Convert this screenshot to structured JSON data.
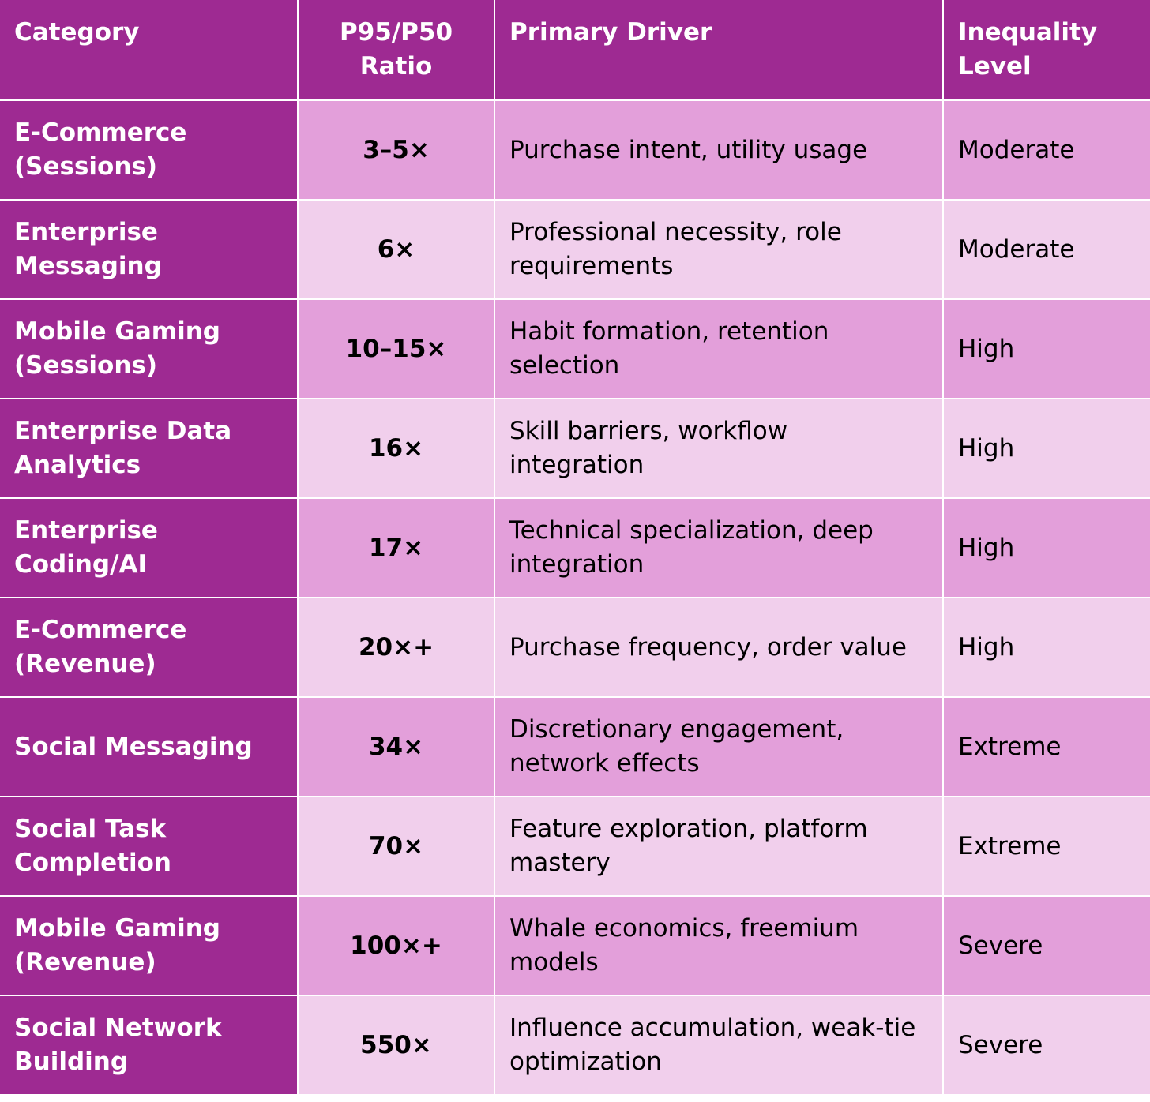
{
  "headers": {
    "category": "Category",
    "ratio": "P95/P50 Ratio",
    "driver": "Primary Driver",
    "level": "Inequality Level"
  },
  "rows": [
    {
      "category": "E-Commerce (Sessions)",
      "ratio": "3–5×",
      "driver": "Purchase intent, utility usage",
      "level": "Moderate"
    },
    {
      "category": "Enterprise Messaging",
      "ratio": "6×",
      "driver": "Professional necessity, role requirements",
      "level": "Moderate"
    },
    {
      "category": "Mobile Gaming (Sessions)",
      "ratio": "10–15×",
      "driver": "Habit formation, retention selection",
      "level": "High"
    },
    {
      "category": "Enterprise Data Analytics",
      "ratio": "16×",
      "driver": "Skill barriers, workflow integration",
      "level": "High"
    },
    {
      "category": "Enterprise Coding/AI",
      "ratio": "17×",
      "driver": "Technical specialization, deep integration",
      "level": "High"
    },
    {
      "category": "E-Commerce (Revenue)",
      "ratio": "20×+",
      "driver": "Purchase frequency, order value",
      "level": "High"
    },
    {
      "category": "Social Messaging",
      "ratio": "34×",
      "driver": "Discretionary engagement, network effects",
      "level": "Extreme"
    },
    {
      "category": "Social Task Completion",
      "ratio": "70×",
      "driver": "Feature exploration, platform mastery",
      "level": "Extreme"
    },
    {
      "category": "Mobile Gaming (Revenue)",
      "ratio": "100×+",
      "driver": "Whale economics, freemium models",
      "level": "Severe"
    },
    {
      "category": "Social Network Building",
      "ratio": "550×",
      "driver": "Influence accumulation, weak-tie optimization",
      "level": "Severe"
    }
  ]
}
